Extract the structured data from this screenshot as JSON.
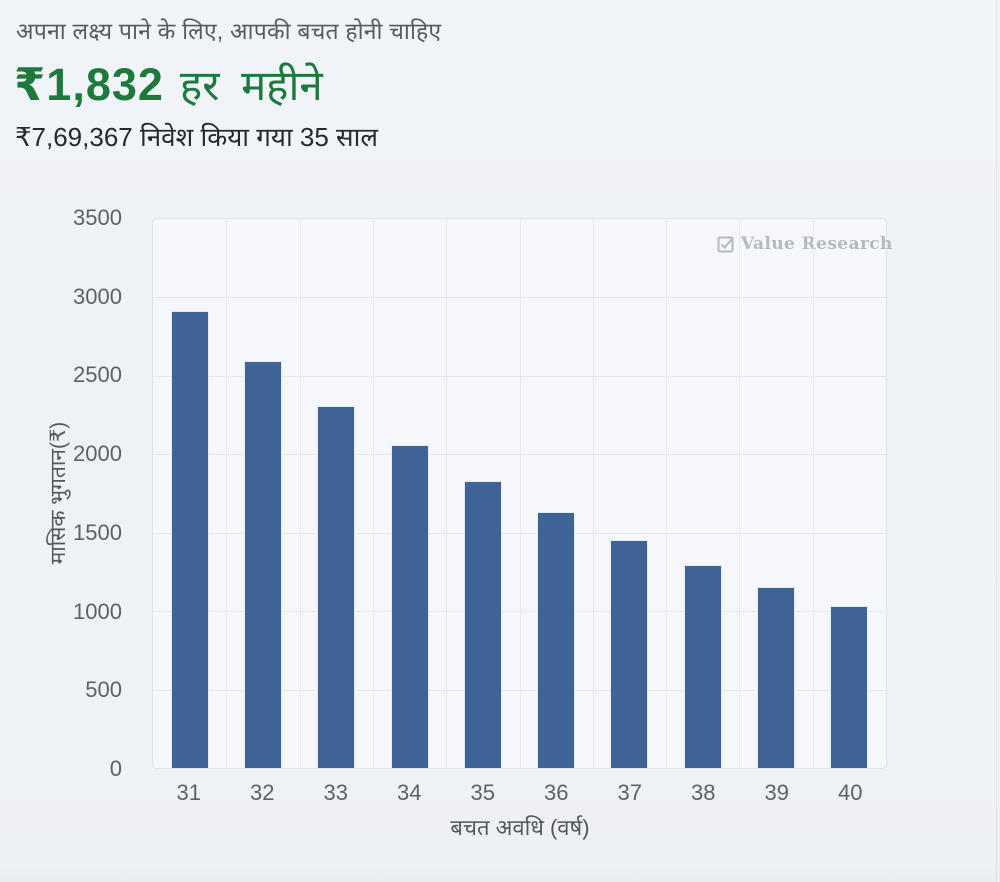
{
  "header": {
    "prompt": "अपना लक्ष्य पाने के लिए, आपकी बचत होनी चाहिए",
    "amount": "₹1,832",
    "amount_suffix": "हर महीने",
    "investment_summary": "₹7,69,367 निवेश किया गया 35 साल"
  },
  "watermark": {
    "label": "Value Research"
  },
  "colors": {
    "accent_green": "#1e7a3c",
    "bar_fill": "#3e6496",
    "page_background": "#eef1f6",
    "plot_background": "#f5f7fa",
    "gridline": "#e5e8ec",
    "tick_label": "#5e6268",
    "watermark": "#b4b9c0"
  },
  "chart_data": {
    "type": "bar",
    "title": "",
    "categories": [
      "31",
      "32",
      "33",
      "34",
      "35",
      "36",
      "37",
      "38",
      "39",
      "40"
    ],
    "values": [
      2916,
      2595,
      2310,
      2058,
      1832,
      1633,
      1455,
      1297,
      1156,
      1031
    ],
    "xlabel": "बचत अवधि (वर्ष)",
    "ylabel": "मासिक भुगतान(₹)",
    "ylim": [
      0,
      3500
    ],
    "yticks": [
      0,
      500,
      1000,
      1500,
      2000,
      2500,
      3000,
      3500
    ],
    "grid": true,
    "legend": false,
    "bar_color": "#3e6496"
  }
}
